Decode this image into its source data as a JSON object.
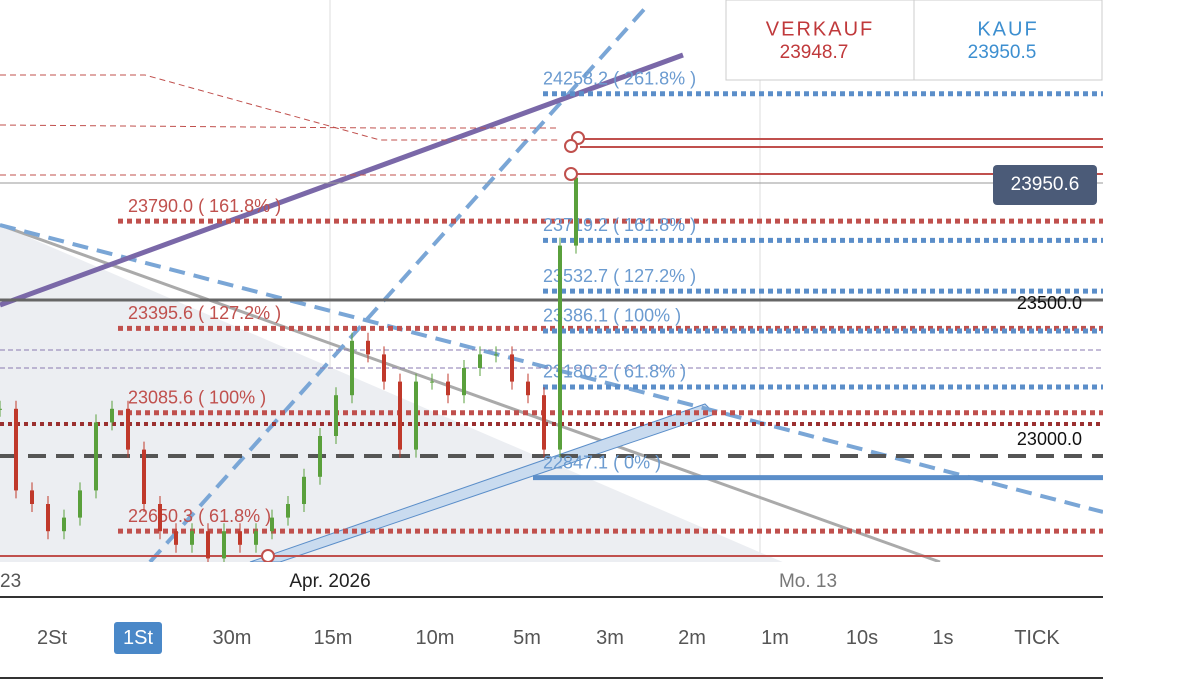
{
  "header": {
    "sell": {
      "label": "VERKAUF",
      "price": "23948.7"
    },
    "buy": {
      "label": "KAUF",
      "price": "23950.5"
    }
  },
  "current_price": "23950.6",
  "price_axis": [
    {
      "value": 23500,
      "label": "23500.0"
    },
    {
      "value": 23000,
      "label": "23000.0"
    }
  ],
  "time_axis": [
    "23",
    "Apr. 2026",
    "Mo. 13"
  ],
  "fib_red": [
    {
      "price": 23790.0,
      "label": "23790.0 ( 161.8% )"
    },
    {
      "price": 23395.6,
      "label": "23395.6 ( 127.2% )"
    },
    {
      "price": 23085.6,
      "label": "23085.6 ( 100% )"
    },
    {
      "price": 22650.3,
      "label": "22650.3 ( 61.8% )"
    }
  ],
  "fib_blue": [
    {
      "price": 24258.2,
      "label": "24258.2 ( 261.8% )"
    },
    {
      "price": 23719.2,
      "label": "23719.2 ( 161.8% )"
    },
    {
      "price": 23532.7,
      "label": "23532.7 ( 127.2% )"
    },
    {
      "price": 23386.1,
      "label": "23386.1 ( 100% )"
    },
    {
      "price": 23180.2,
      "label": "23180.2 ( 61.8% )"
    },
    {
      "price": 22847.1,
      "label": "22847.1 ( 0% )"
    }
  ],
  "closes": [
    23100,
    22800,
    22750,
    22650,
    22700,
    22800,
    23050,
    23100,
    22950,
    22750,
    22650,
    22600,
    22650,
    22550,
    22650,
    22600,
    22650,
    22700,
    22750,
    22850,
    23000,
    23150,
    23350,
    23300,
    23200,
    22950,
    23200,
    23200,
    23150,
    23250,
    23300,
    23300,
    23200,
    23150,
    22950,
    23700,
    23950
  ],
  "timeframes": [
    "2St",
    "1St",
    "30m",
    "15m",
    "10m",
    "5m",
    "3m",
    "2m",
    "1m",
    "10s",
    "1s",
    "TICK"
  ],
  "active_timeframe": 1
}
